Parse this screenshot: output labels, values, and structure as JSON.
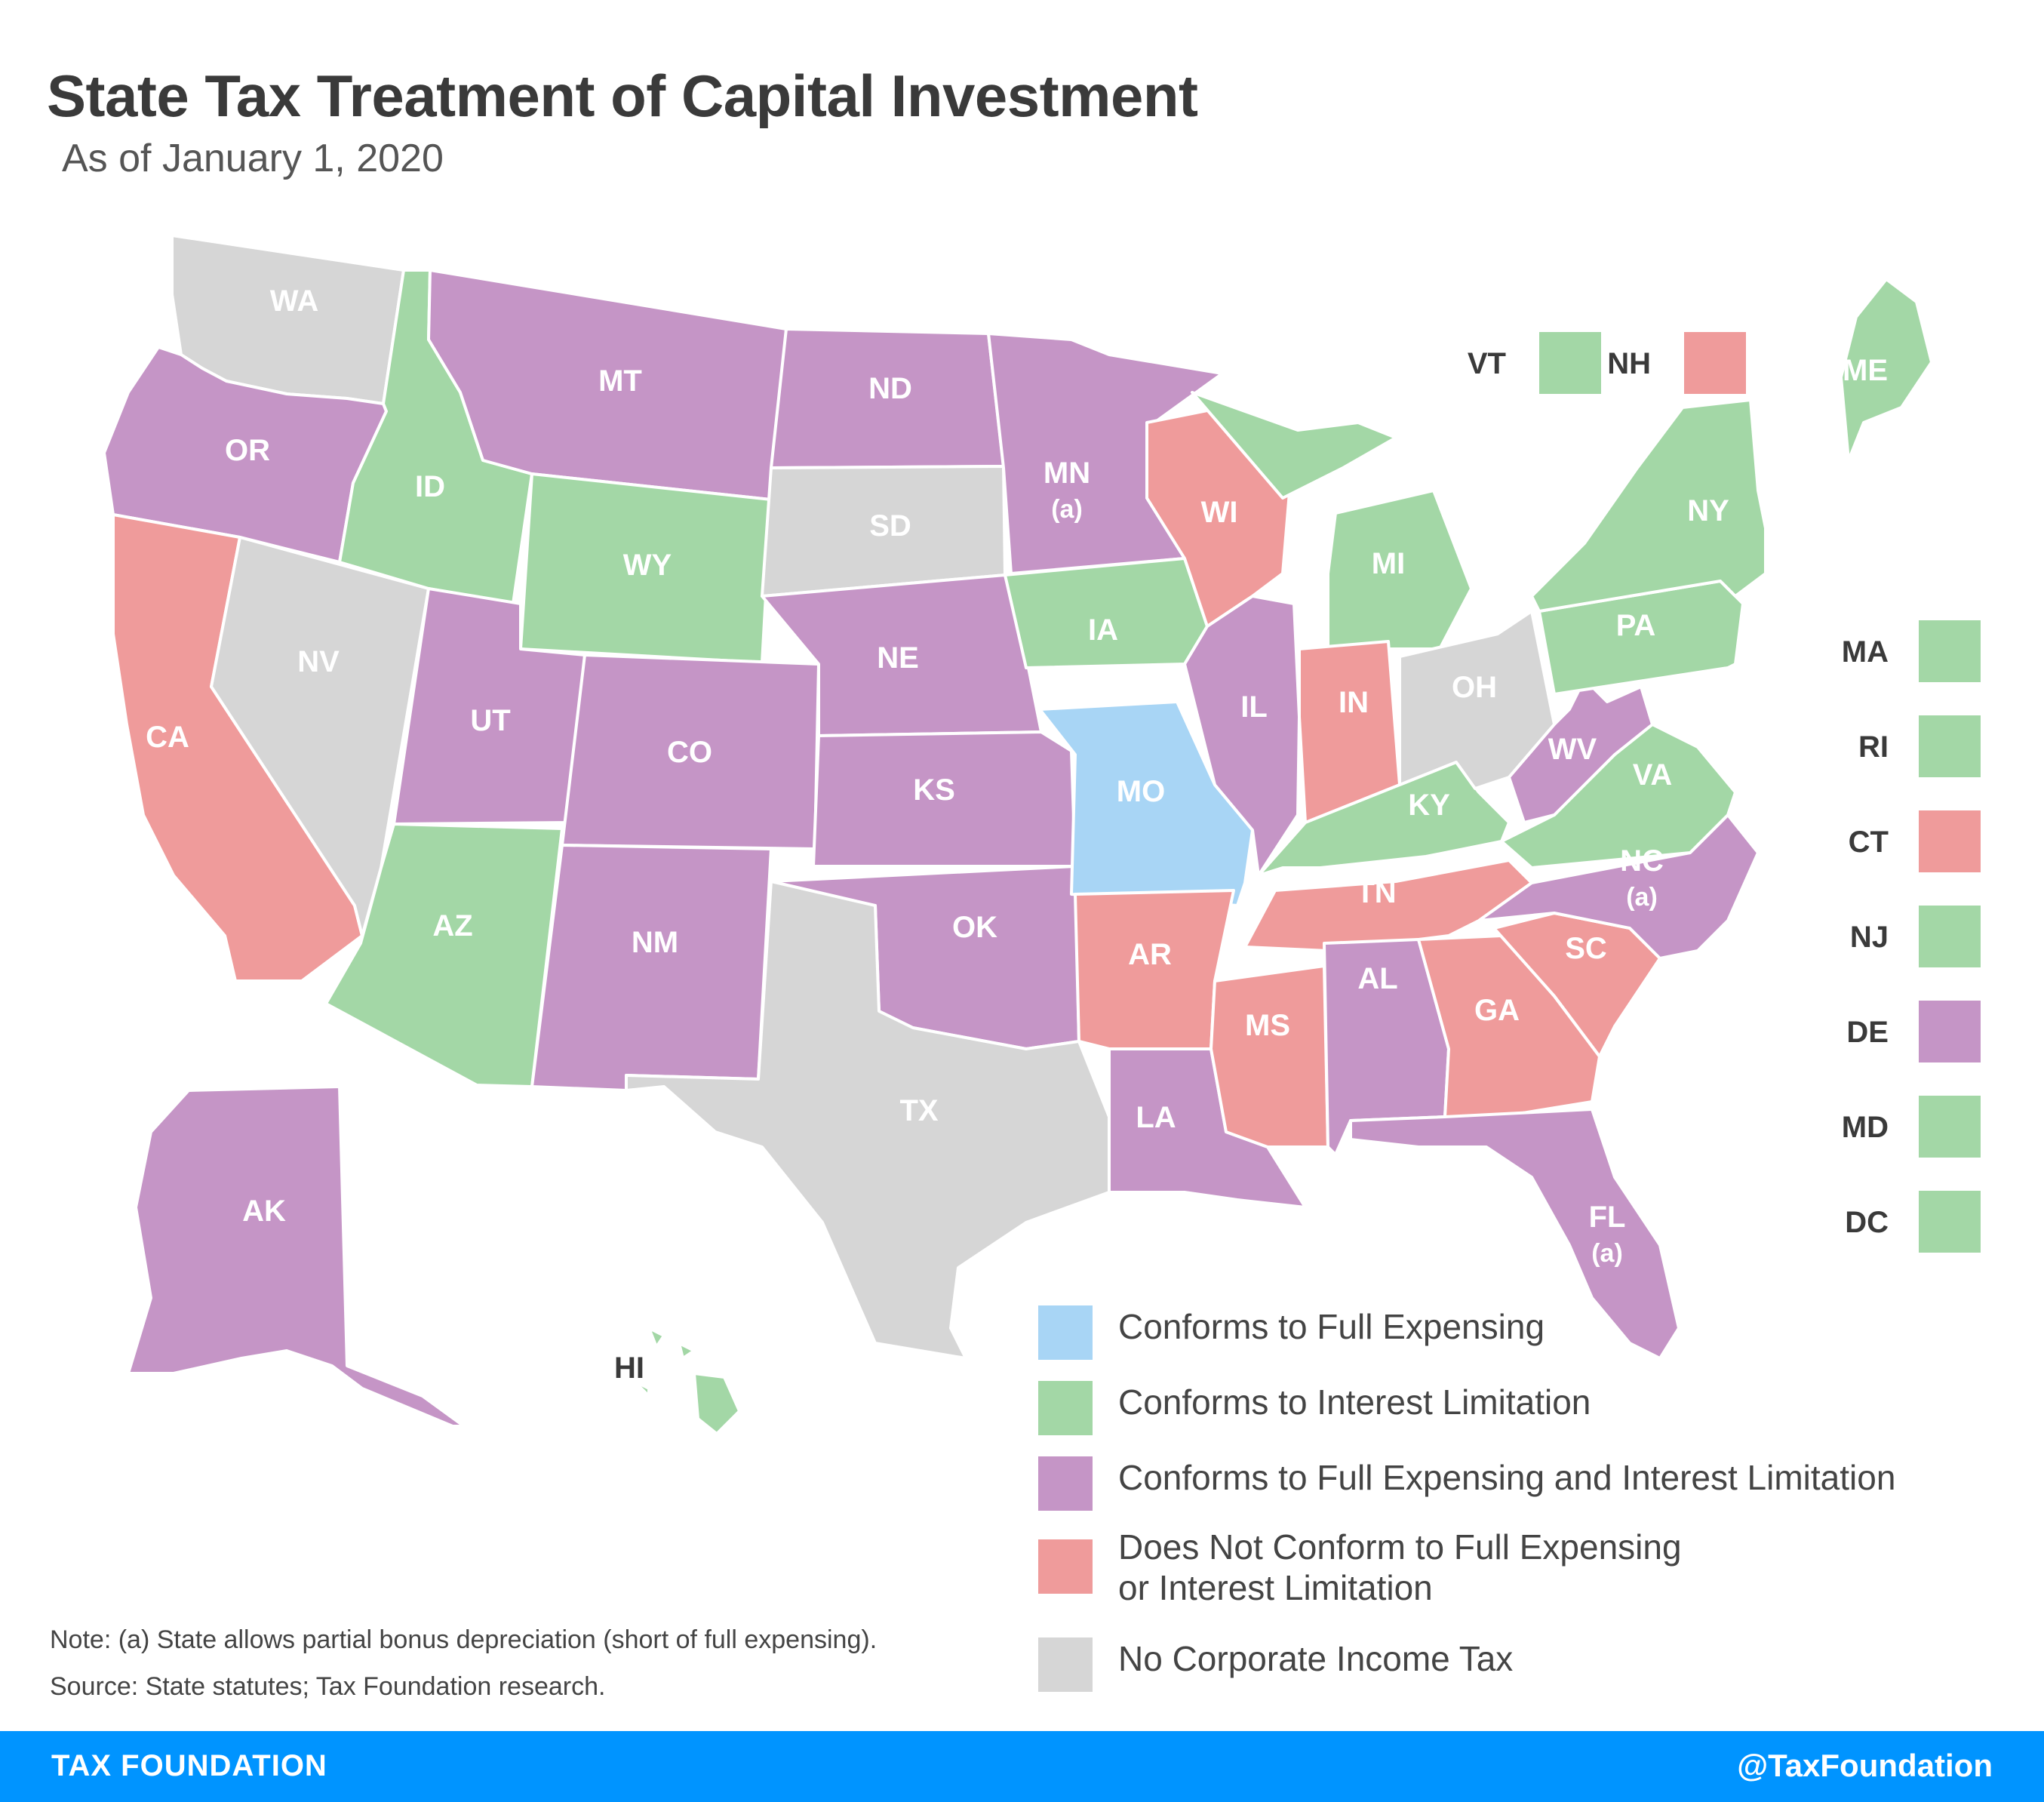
{
  "title": "State Tax Treatment of Capital Investment",
  "subtitle": "As of January 1, 2020",
  "colors": {
    "full_expensing": "#a8d5f5",
    "interest_limitation": "#a3d7a6",
    "both": "#c595c6",
    "neither": "#ef9b9b",
    "no_tax": "#d6d6d6",
    "footer": "#0094ff"
  },
  "states": [
    {
      "abbr": "WA",
      "category": "no_tax"
    },
    {
      "abbr": "OR",
      "category": "both"
    },
    {
      "abbr": "CA",
      "category": "neither"
    },
    {
      "abbr": "NV",
      "category": "no_tax"
    },
    {
      "abbr": "ID",
      "category": "interest_limitation"
    },
    {
      "abbr": "MT",
      "category": "both"
    },
    {
      "abbr": "WY",
      "category": "interest_limitation"
    },
    {
      "abbr": "UT",
      "category": "both"
    },
    {
      "abbr": "AZ",
      "category": "interest_limitation"
    },
    {
      "abbr": "CO",
      "category": "both"
    },
    {
      "abbr": "NM",
      "category": "both"
    },
    {
      "abbr": "ND",
      "category": "both"
    },
    {
      "abbr": "SD",
      "category": "no_tax"
    },
    {
      "abbr": "NE",
      "category": "both"
    },
    {
      "abbr": "KS",
      "category": "both"
    },
    {
      "abbr": "OK",
      "category": "both"
    },
    {
      "abbr": "TX",
      "category": "no_tax"
    },
    {
      "abbr": "MN",
      "category": "both",
      "note": "(a)"
    },
    {
      "abbr": "IA",
      "category": "interest_limitation"
    },
    {
      "abbr": "MO",
      "category": "full_expensing"
    },
    {
      "abbr": "AR",
      "category": "neither"
    },
    {
      "abbr": "LA",
      "category": "both"
    },
    {
      "abbr": "WI",
      "category": "neither"
    },
    {
      "abbr": "IL",
      "category": "both"
    },
    {
      "abbr": "MS",
      "category": "neither"
    },
    {
      "abbr": "MI",
      "category": "interest_limitation"
    },
    {
      "abbr": "IN",
      "category": "neither"
    },
    {
      "abbr": "KY",
      "category": "interest_limitation"
    },
    {
      "abbr": "TN",
      "category": "neither"
    },
    {
      "abbr": "AL",
      "category": "both"
    },
    {
      "abbr": "OH",
      "category": "no_tax"
    },
    {
      "abbr": "GA",
      "category": "neither"
    },
    {
      "abbr": "FL",
      "category": "both",
      "note": "(a)"
    },
    {
      "abbr": "SC",
      "category": "neither"
    },
    {
      "abbr": "NC",
      "category": "both",
      "note": "(a)"
    },
    {
      "abbr": "VA",
      "category": "interest_limitation"
    },
    {
      "abbr": "WV",
      "category": "both"
    },
    {
      "abbr": "PA",
      "category": "interest_limitation"
    },
    {
      "abbr": "NY",
      "category": "interest_limitation"
    },
    {
      "abbr": "ME",
      "category": "interest_limitation"
    },
    {
      "abbr": "AK",
      "category": "both"
    },
    {
      "abbr": "HI",
      "category": "interest_limitation"
    }
  ],
  "small_states": [
    {
      "abbr": "VT",
      "category": "interest_limitation"
    },
    {
      "abbr": "NH",
      "category": "neither"
    },
    {
      "abbr": "MA",
      "category": "interest_limitation"
    },
    {
      "abbr": "RI",
      "category": "interest_limitation"
    },
    {
      "abbr": "CT",
      "category": "neither"
    },
    {
      "abbr": "NJ",
      "category": "interest_limitation"
    },
    {
      "abbr": "DE",
      "category": "both"
    },
    {
      "abbr": "MD",
      "category": "interest_limitation"
    },
    {
      "abbr": "DC",
      "category": "interest_limitation"
    }
  ],
  "legend": [
    {
      "category": "full_expensing",
      "label": "Conforms to Full Expensing"
    },
    {
      "category": "interest_limitation",
      "label": "Conforms to Interest Limitation"
    },
    {
      "category": "both",
      "label": "Conforms to Full Expensing and Interest Limitation"
    },
    {
      "category": "neither",
      "label": "Does Not Conform to Full Expensing",
      "label2": "or Interest Limitation"
    },
    {
      "category": "no_tax",
      "label": "No Corporate Income Tax"
    }
  ],
  "note": "Note: (a) State allows partial bonus depreciation (short of full expensing).",
  "source": "Source: State statutes; Tax Foundation research.",
  "footer": {
    "left": "TAX FOUNDATION",
    "right": "@TaxFoundation"
  }
}
